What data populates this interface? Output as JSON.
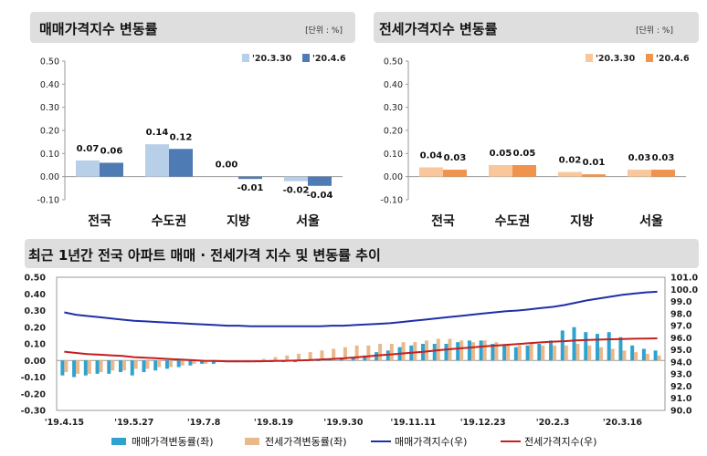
{
  "panels": {
    "sale": {
      "title": "매매가격지수 변동률",
      "unit": "[단위 : %]"
    },
    "jeonse": {
      "title": "전세가격지수 변동률",
      "unit": "[단위 : %]"
    },
    "trend": {
      "title": "최근 1년간 전국 아파트 매매 · 전세가격 지수 및 변동률 추이"
    }
  },
  "chart_data": [
    {
      "type": "bar",
      "categories": [
        "전국",
        "수도권",
        "지방",
        "서울"
      ],
      "series": [
        {
          "name": "'20.3.30",
          "values": [
            0.07,
            0.14,
            0.0,
            -0.02
          ],
          "color": "#b8cfe8"
        },
        {
          "name": "'20.4.6",
          "values": [
            0.06,
            0.12,
            -0.01,
            -0.04
          ],
          "color": "#4f7bb5"
        }
      ],
      "value_labels": [
        [
          "0.07",
          "0.14",
          "0.00",
          "-0.02"
        ],
        [
          "0.06",
          "0.12",
          "-0.01",
          "-0.04"
        ]
      ],
      "ylim": [
        -0.1,
        0.5
      ],
      "yticks": [
        "-0.10",
        "0.00",
        "0.10",
        "0.20",
        "0.30",
        "0.40",
        "0.50"
      ],
      "legend_position": "top-right"
    },
    {
      "type": "bar",
      "categories": [
        "전국",
        "수도권",
        "지방",
        "서울"
      ],
      "series": [
        {
          "name": "'20.3.30",
          "values": [
            0.04,
            0.05,
            0.02,
            0.03
          ],
          "color": "#f9c79b"
        },
        {
          "name": "'20.4.6",
          "values": [
            0.03,
            0.05,
            0.01,
            0.03
          ],
          "color": "#f0944d"
        }
      ],
      "value_labels": [
        [
          "0.04",
          "0.05",
          "0.02",
          "0.03"
        ],
        [
          "0.03",
          "0.05",
          "0.01",
          "0.03"
        ]
      ],
      "ylim": [
        -0.1,
        0.5
      ],
      "yticks": [
        "-0.10",
        "0.00",
        "0.10",
        "0.20",
        "0.30",
        "0.40",
        "0.50"
      ],
      "legend_position": "top-right"
    },
    {
      "type": "bar+line",
      "x_ticks": [
        "'19.4.15",
        "'19.5.27",
        "'19.7.8",
        "'19.8.19",
        "'19.9.30",
        "'19.11.11",
        "'19.12.23",
        "'20.2.3",
        "'20.3.16"
      ],
      "y_left": {
        "ylim": [
          -0.3,
          0.5
        ],
        "ticks": [
          "-0.30",
          "-0.20",
          "-0.10",
          "0.00",
          "0.10",
          "0.20",
          "0.30",
          "0.40",
          "0.50"
        ]
      },
      "y_right": {
        "ylim": [
          90.0,
          101.0
        ],
        "ticks": [
          "90.0",
          "91.0",
          "92.0",
          "93.0",
          "94.0",
          "95.0",
          "96.0",
          "97.0",
          "98.0",
          "99.0",
          "100.0",
          "101.0"
        ]
      },
      "series": [
        {
          "name": "매매가격변동률(좌)",
          "kind": "bar",
          "axis": "left",
          "color": "#2ea3cf",
          "values": [
            -0.09,
            -0.1,
            -0.09,
            -0.08,
            -0.08,
            -0.07,
            -0.09,
            -0.07,
            -0.06,
            -0.05,
            -0.04,
            -0.03,
            -0.02,
            -0.02,
            -0.01,
            -0.01,
            -0.01,
            -0.01,
            -0.01,
            -0.01,
            -0.01,
            0.0,
            0.0,
            0.01,
            0.01,
            0.02,
            0.03,
            0.05,
            0.06,
            0.08,
            0.09,
            0.1,
            0.1,
            0.1,
            0.11,
            0.12,
            0.12,
            0.1,
            0.09,
            0.08,
            0.09,
            0.1,
            0.12,
            0.18,
            0.2,
            0.17,
            0.16,
            0.17,
            0.14,
            0.09,
            0.07,
            0.06
          ]
        },
        {
          "name": "전세가격변동률(좌)",
          "kind": "bar",
          "axis": "left",
          "color": "#e9b88c",
          "values": [
            -0.07,
            -0.08,
            -0.08,
            -0.07,
            -0.06,
            -0.06,
            -0.05,
            -0.05,
            -0.04,
            -0.04,
            -0.03,
            -0.02,
            -0.02,
            -0.01,
            -0.01,
            0.0,
            0.0,
            0.01,
            0.02,
            0.03,
            0.04,
            0.05,
            0.06,
            0.07,
            0.08,
            0.09,
            0.09,
            0.1,
            0.1,
            0.11,
            0.11,
            0.12,
            0.13,
            0.13,
            0.12,
            0.11,
            0.12,
            0.11,
            0.1,
            0.09,
            0.1,
            0.09,
            0.09,
            0.09,
            0.1,
            0.09,
            0.08,
            0.07,
            0.06,
            0.05,
            0.04,
            0.03
          ]
        },
        {
          "name": "매매가격지수(우)",
          "kind": "line",
          "axis": "right",
          "color": "#1f2fa8",
          "values": [
            98.1,
            97.9,
            97.8,
            97.7,
            97.6,
            97.5,
            97.4,
            97.35,
            97.3,
            97.25,
            97.2,
            97.15,
            97.1,
            97.05,
            97.0,
            97.0,
            96.95,
            96.95,
            96.95,
            96.95,
            96.95,
            96.95,
            96.95,
            97.0,
            97.0,
            97.05,
            97.1,
            97.15,
            97.2,
            97.3,
            97.4,
            97.5,
            97.6,
            97.7,
            97.8,
            97.9,
            98.0,
            98.1,
            98.2,
            98.25,
            98.35,
            98.45,
            98.55,
            98.7,
            98.9,
            99.1,
            99.25,
            99.4,
            99.55,
            99.65,
            99.75,
            99.8
          ]
        },
        {
          "name": "전세가격지수(우)",
          "kind": "line",
          "axis": "right",
          "color": "#c3201f",
          "values": [
            94.85,
            94.75,
            94.65,
            94.6,
            94.55,
            94.5,
            94.4,
            94.35,
            94.3,
            94.25,
            94.2,
            94.15,
            94.1,
            94.08,
            94.05,
            94.05,
            94.05,
            94.06,
            94.08,
            94.1,
            94.12,
            94.15,
            94.2,
            94.25,
            94.3,
            94.38,
            94.45,
            94.55,
            94.62,
            94.7,
            94.78,
            94.85,
            94.95,
            95.05,
            95.12,
            95.2,
            95.28,
            95.35,
            95.42,
            95.48,
            95.55,
            95.62,
            95.68,
            95.72,
            95.78,
            95.82,
            95.85,
            95.88,
            95.9,
            95.92,
            95.93,
            95.95
          ]
        }
      ],
      "legend_position": "bottom"
    }
  ]
}
